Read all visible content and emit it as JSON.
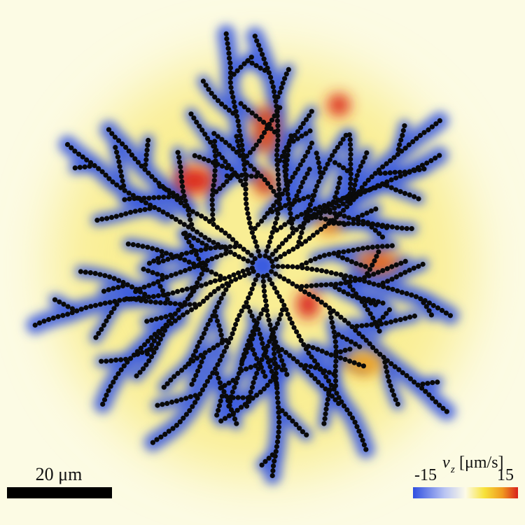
{
  "scale_bar": {
    "label": "20 μm"
  },
  "colorbar": {
    "symbol": "v",
    "subscript": "z",
    "unit": "[μm/s]",
    "min": -15,
    "max": 15
  }
}
